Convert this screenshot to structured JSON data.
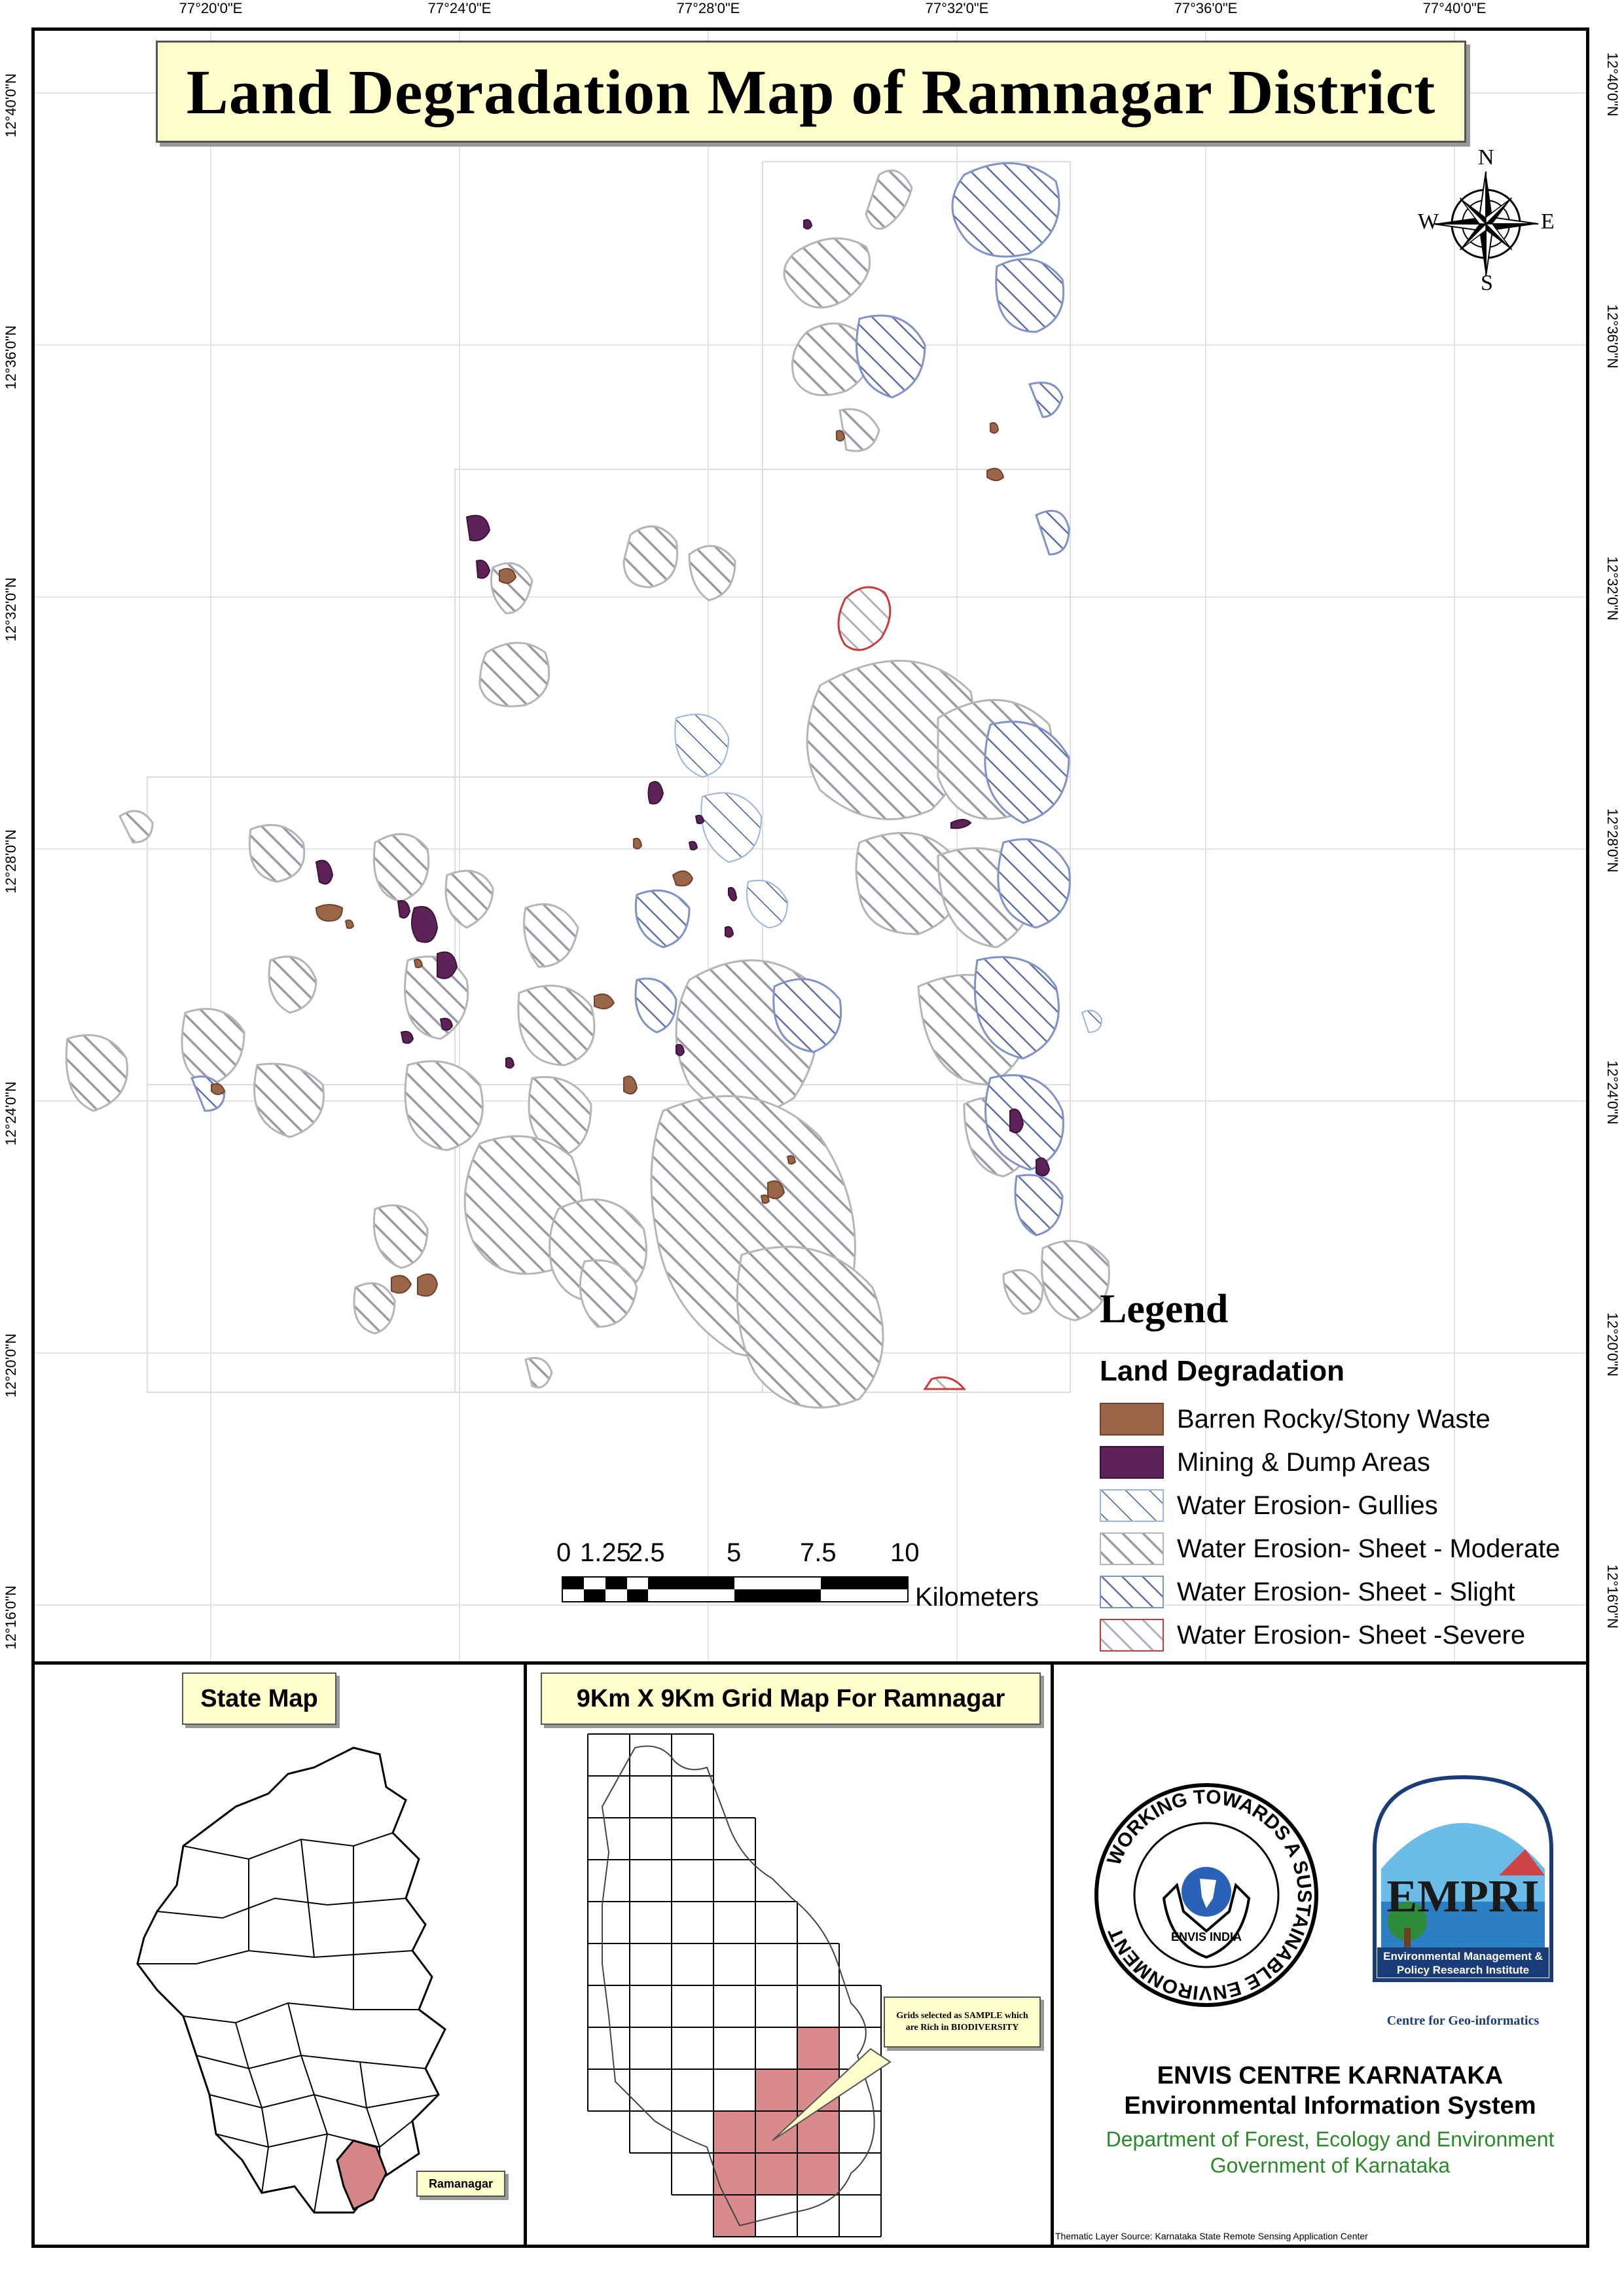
{
  "map": {
    "title": "Land Degradation Map of Ramnagar District",
    "lon_ticks": [
      "77°20'0\"E",
      "77°24'0\"E",
      "77°28'0\"E",
      "77°32'0\"E",
      "77°36'0\"E",
      "77°40'0\"E"
    ],
    "lat_ticks": [
      "12°40'0\"N",
      "12°36'0\"N",
      "12°32'0\"N",
      "12°28'0\"N",
      "12°24'0\"N",
      "12°20'0\"N",
      "12°16'0\"N"
    ],
    "north_arrow": {
      "n": "N",
      "s": "S",
      "e": "E",
      "w": "W",
      "icon": "compass-rose-icon"
    }
  },
  "legend": {
    "title": "Legend",
    "subtitle": "Land Degradation",
    "items": [
      {
        "label": "Barren Rocky/Stony Waste",
        "color": "#9b6648",
        "pattern": "solid"
      },
      {
        "label": "Mining & Dump Areas",
        "color": "#5e2258",
        "pattern": "solid"
      },
      {
        "label": "Water Erosion- Gullies",
        "color": "#3b5ea8",
        "pattern": "hatch"
      },
      {
        "label": "Water Erosion- Sheet - Moderate",
        "color": "#9a9aa6",
        "pattern": "hatch"
      },
      {
        "label": "Water Erosion- Sheet - Slight",
        "color": "#5d6fa8",
        "pattern": "hatch"
      },
      {
        "label": "Water Erosion- Sheet -Severe",
        "color": "#c93a3a",
        "pattern": "hatch"
      }
    ]
  },
  "scale_bar": {
    "labels": [
      "0",
      "1.25",
      "2.5",
      "5",
      "7.5",
      "10"
    ],
    "unit": "Kilometers"
  },
  "state_map": {
    "title": "State Map",
    "callout": "Ramanagar",
    "highlight_color": "#d48585"
  },
  "grid_map": {
    "title": "9Km X 9Km Grid Map For Ramnagar",
    "callout": "Grids selected as SAMPLE which are Rich in BIODIVERSITY",
    "highlight_color": "#d98a8a"
  },
  "envis": {
    "logo1_ring_text": "WORKING TOWARDS A SUSTAINABLE ENVIRONMENT",
    "logo1_center": "ENVIS INDIA",
    "logo2_letters": "EMPRI",
    "logo2_caption": "Environmental Management & Policy Research Institute",
    "logo2_sub": "Centre for Geo-informatics",
    "centre": "ENVIS CENTRE KARNATAKA",
    "system": "Environmental Information System",
    "dept": "Department of Forest, Ecology and Environment",
    "govt": "Government of Karnataka",
    "source": "Thematic Layer Source: Karnataka State Remote Sensing Application Center"
  }
}
